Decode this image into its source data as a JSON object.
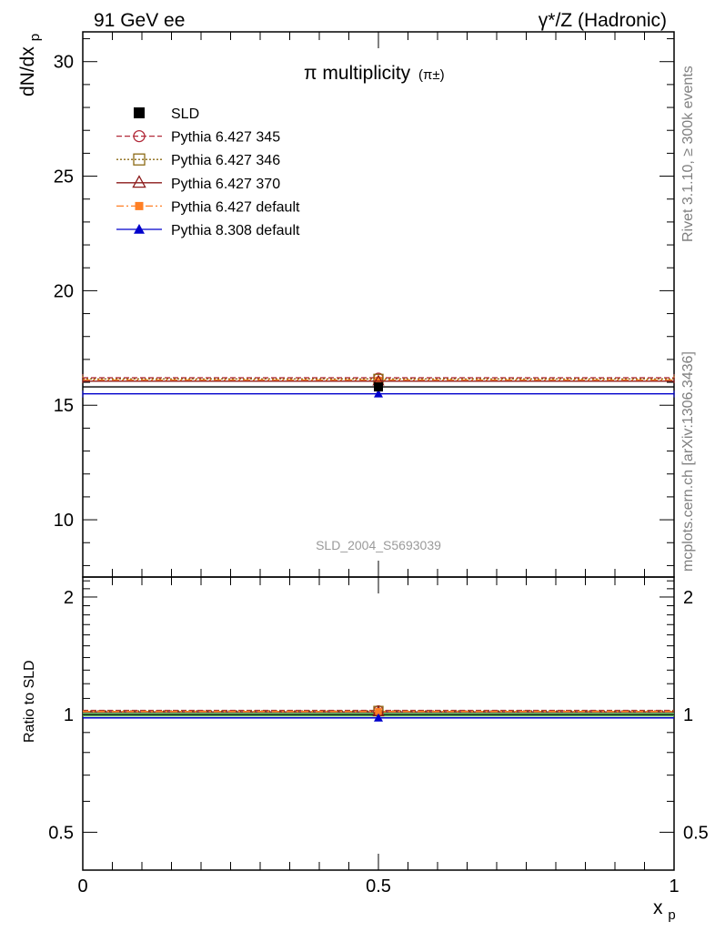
{
  "header": {
    "left": "91 GeV ee",
    "right": "γ*/Z (Hadronic)"
  },
  "side_labels": {
    "rivet": "Rivet 3.1.10, ≥ 300k events",
    "mcplots": "mcplots.cern.ch [arXiv:1306.3436]"
  },
  "watermark": "SLD_2004_S5693039",
  "colors": {
    "SLD": "#000000",
    "p345": "#b22a3a",
    "p346": "#8b6914",
    "p370": "#8b1a1a",
    "p6def": "#ff7f24",
    "p8def": "#0000cc",
    "band_green": "#5ab75a"
  },
  "chart_data": [
    {
      "type": "scatter",
      "title": "π multiplicity",
      "title_suffix": "(π±)",
      "ylabel": "dN/dx",
      "ylabel_sub": "p",
      "xlim": [
        0,
        1
      ],
      "ylim": [
        7.5,
        31.3
      ],
      "x_ticks": [
        0,
        0.5,
        1
      ],
      "x_tick_labels": [
        "0",
        "0.5",
        "1"
      ],
      "y_ticks": [
        10,
        15,
        20,
        25,
        30
      ],
      "y_tick_labels": [
        "10",
        "15",
        "20",
        "25",
        "30"
      ],
      "legend_position": "top-left",
      "series": [
        {
          "name": "SLD",
          "x": [
            0.5
          ],
          "y": [
            15.8
          ],
          "xerr": 0.5,
          "style": "data",
          "marker": "filled-square",
          "key": "SLD"
        },
        {
          "name": "Pythia 6.427 345",
          "x": [
            0.5
          ],
          "y": [
            16.2
          ],
          "xerr": 0.5,
          "style": "dashed",
          "marker": "open-circle",
          "key": "p345"
        },
        {
          "name": "Pythia 6.427 346",
          "x": [
            0.5
          ],
          "y": [
            16.15
          ],
          "xerr": 0.5,
          "style": "dotted",
          "marker": "open-square",
          "key": "p346"
        },
        {
          "name": "Pythia 6.427 370",
          "x": [
            0.5
          ],
          "y": [
            16.05
          ],
          "xerr": 0.5,
          "style": "solid",
          "marker": "open-triangle",
          "key": "p370"
        },
        {
          "name": "Pythia 6.427 default",
          "x": [
            0.5
          ],
          "y": [
            16.1
          ],
          "xerr": 0.5,
          "style": "dashdot",
          "marker": "filled-square-small",
          "key": "p6def"
        },
        {
          "name": "Pythia 8.308 default",
          "x": [
            0.5
          ],
          "y": [
            15.5
          ],
          "xerr": 0.5,
          "style": "solid",
          "marker": "filled-triangle",
          "key": "p8def"
        }
      ]
    },
    {
      "type": "scatter",
      "ylabel": "Ratio to SLD",
      "xlabel": "x",
      "xlabel_sub": "p",
      "xlim": [
        0,
        1
      ],
      "ylim": [
        0.4,
        2.25
      ],
      "scale": "log",
      "x_ticks": [
        0,
        0.5,
        1
      ],
      "x_tick_labels": [
        "0",
        "0.5",
        "1"
      ],
      "y_ticks": [
        0.5,
        1,
        2
      ],
      "y_tick_labels": [
        "0.5",
        "1",
        "2"
      ],
      "series": [
        {
          "name": "Pythia 6.427 345",
          "x": [
            0.5
          ],
          "y": [
            1.025
          ],
          "key": "p345"
        },
        {
          "name": "Pythia 6.427 346",
          "x": [
            0.5
          ],
          "y": [
            1.022
          ],
          "key": "p346"
        },
        {
          "name": "Pythia 6.427 370",
          "x": [
            0.5
          ],
          "y": [
            1.016
          ],
          "key": "p370"
        },
        {
          "name": "Pythia 6.427 default",
          "x": [
            0.5
          ],
          "y": [
            1.019
          ],
          "key": "p6def"
        },
        {
          "name": "Pythia 8.308 default",
          "x": [
            0.5
          ],
          "y": [
            0.981
          ],
          "key": "p8def"
        }
      ]
    }
  ]
}
